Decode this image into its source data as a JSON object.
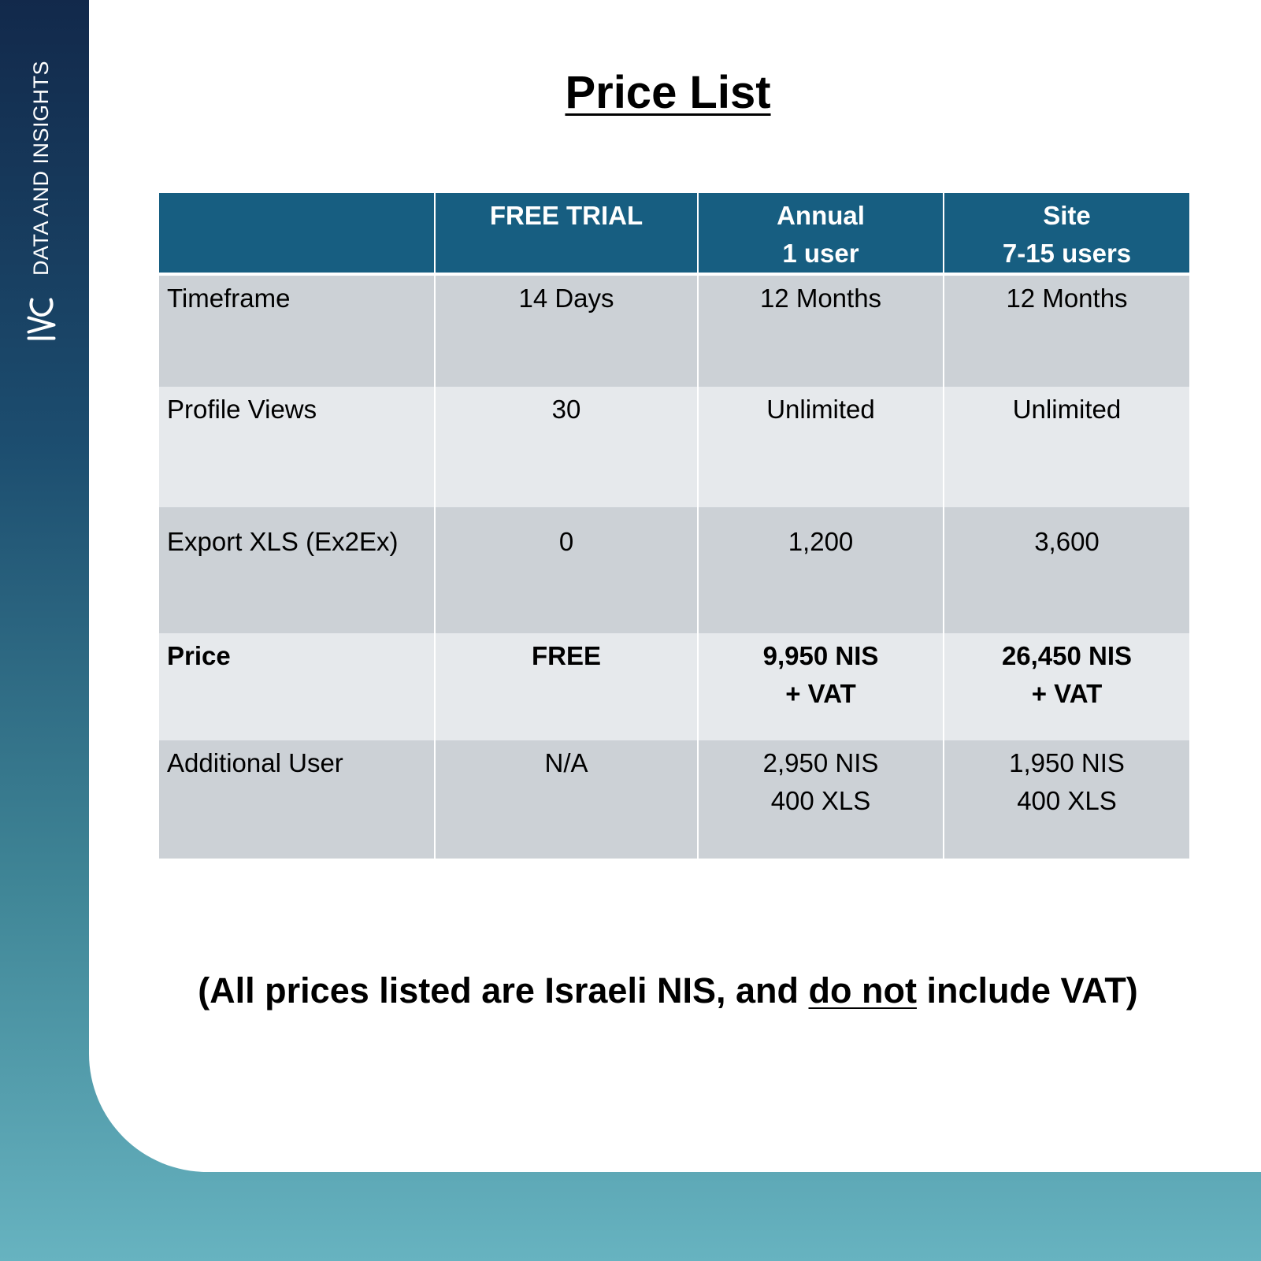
{
  "brand": {
    "tagline": "DATA AND INSIGHTS",
    "logo_icon": "ivc-logo-icon"
  },
  "title": "Price List",
  "table": {
    "columns": [
      {
        "lines": [
          ""
        ]
      },
      {
        "lines": [
          "FREE TRIAL"
        ]
      },
      {
        "lines": [
          "Annual",
          "1 user"
        ]
      },
      {
        "lines": [
          "Site",
          "7-15 users"
        ]
      }
    ],
    "rows": [
      {
        "label": "Timeframe",
        "cells": [
          [
            "14 Days"
          ],
          [
            "12 Months"
          ],
          [
            "12 Months"
          ]
        ]
      },
      {
        "label": "Profile Views",
        "cells": [
          [
            "30"
          ],
          [
            "Unlimited"
          ],
          [
            "Unlimited"
          ]
        ]
      },
      {
        "label": "Export XLS (Ex2Ex)",
        "cells": [
          [
            "0"
          ],
          [
            "1,200"
          ],
          [
            "3,600"
          ]
        ]
      },
      {
        "label": "Price",
        "cells": [
          [
            "FREE"
          ],
          [
            "9,950 NIS",
            "+ VAT"
          ],
          [
            "26,450 NIS",
            "+ VAT"
          ]
        ]
      },
      {
        "label": "Additional User",
        "cells": [
          [
            "N/A"
          ],
          [
            "2,950 NIS",
            "400 XLS"
          ],
          [
            "1,950 NIS",
            "400 XLS"
          ]
        ]
      }
    ]
  },
  "footnote": {
    "before": "(All prices listed are Israeli NIS, and ",
    "underlined": "do not",
    "after": " include VAT)"
  },
  "colors": {
    "header_bg": "#175e81",
    "row_dark": "#ccd1d6",
    "row_light": "#e6e9ec",
    "sidebar_top": "#12294b",
    "sidebar_bottom": "#67b3c0"
  }
}
